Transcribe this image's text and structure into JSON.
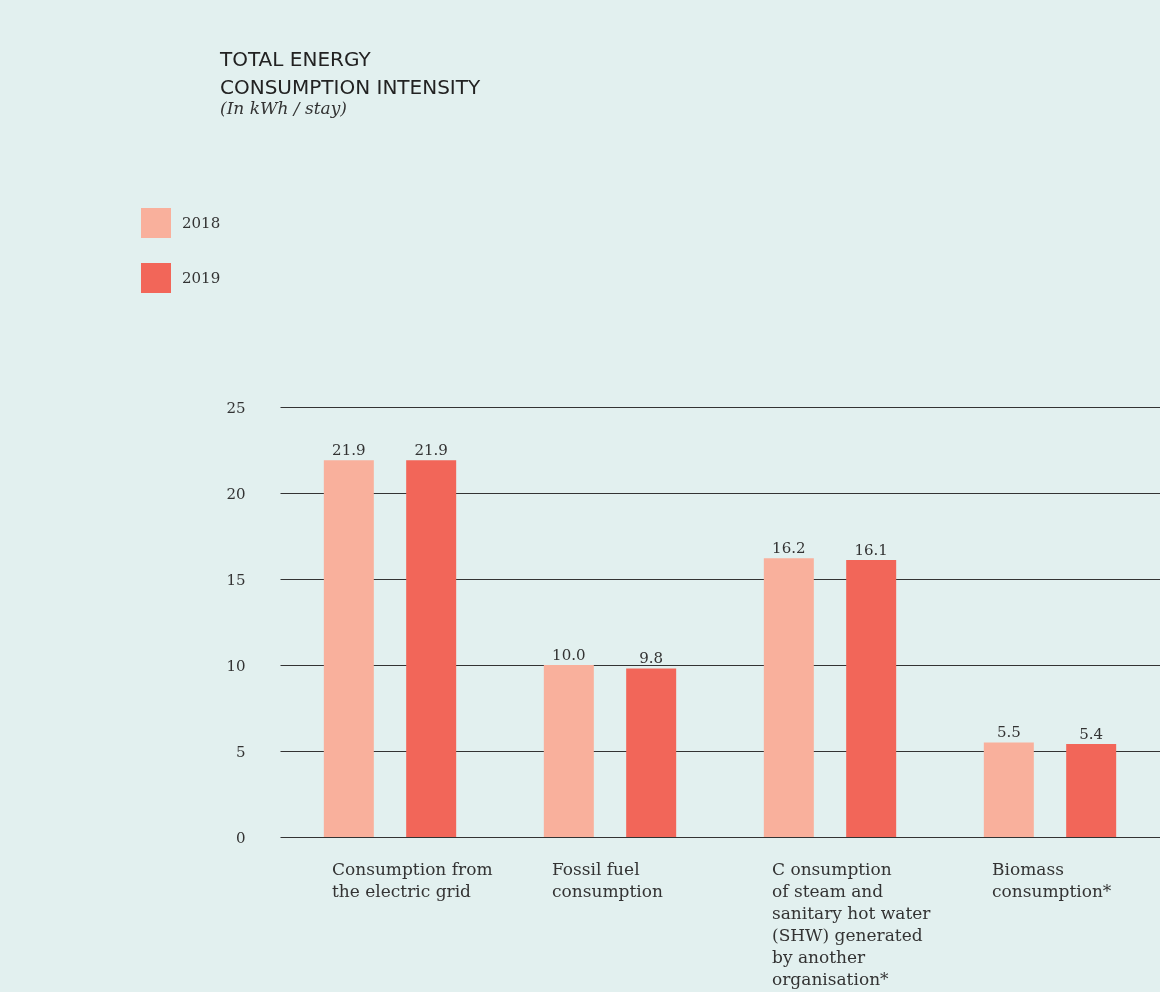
{
  "chart_data": {
    "type": "bar",
    "title": "TOTAL ENERGY\nCONSUMPTION INTENSITY",
    "subtitle": "(In kWh / stay)",
    "categories": [
      "Consumption from\nthe electric grid",
      "Fossil fuel\nconsumption",
      "C onsumption\nof steam and\nsanitary hot water\n(SHW) generated\nby another\norganisation*",
      "Biomass\nconsumption*"
    ],
    "series": [
      {
        "name": "2018",
        "color": "#f9b09c",
        "values": [
          21.9,
          10.0,
          16.2,
          5.5
        ],
        "value_labels": [
          "21.9",
          "10.0",
          "16.2",
          "5.5"
        ]
      },
      {
        "name": "2019",
        "color": "#f26659",
        "values": [
          21.9,
          9.8,
          16.1,
          5.4
        ],
        "value_labels": [
          "21.9",
          "9.8",
          "16.1",
          "5.4"
        ]
      }
    ],
    "ylim": [
      0,
      25
    ],
    "yticks": [
      0,
      5,
      10,
      15,
      20,
      25
    ],
    "grid": "y",
    "legend": "top left"
  }
}
